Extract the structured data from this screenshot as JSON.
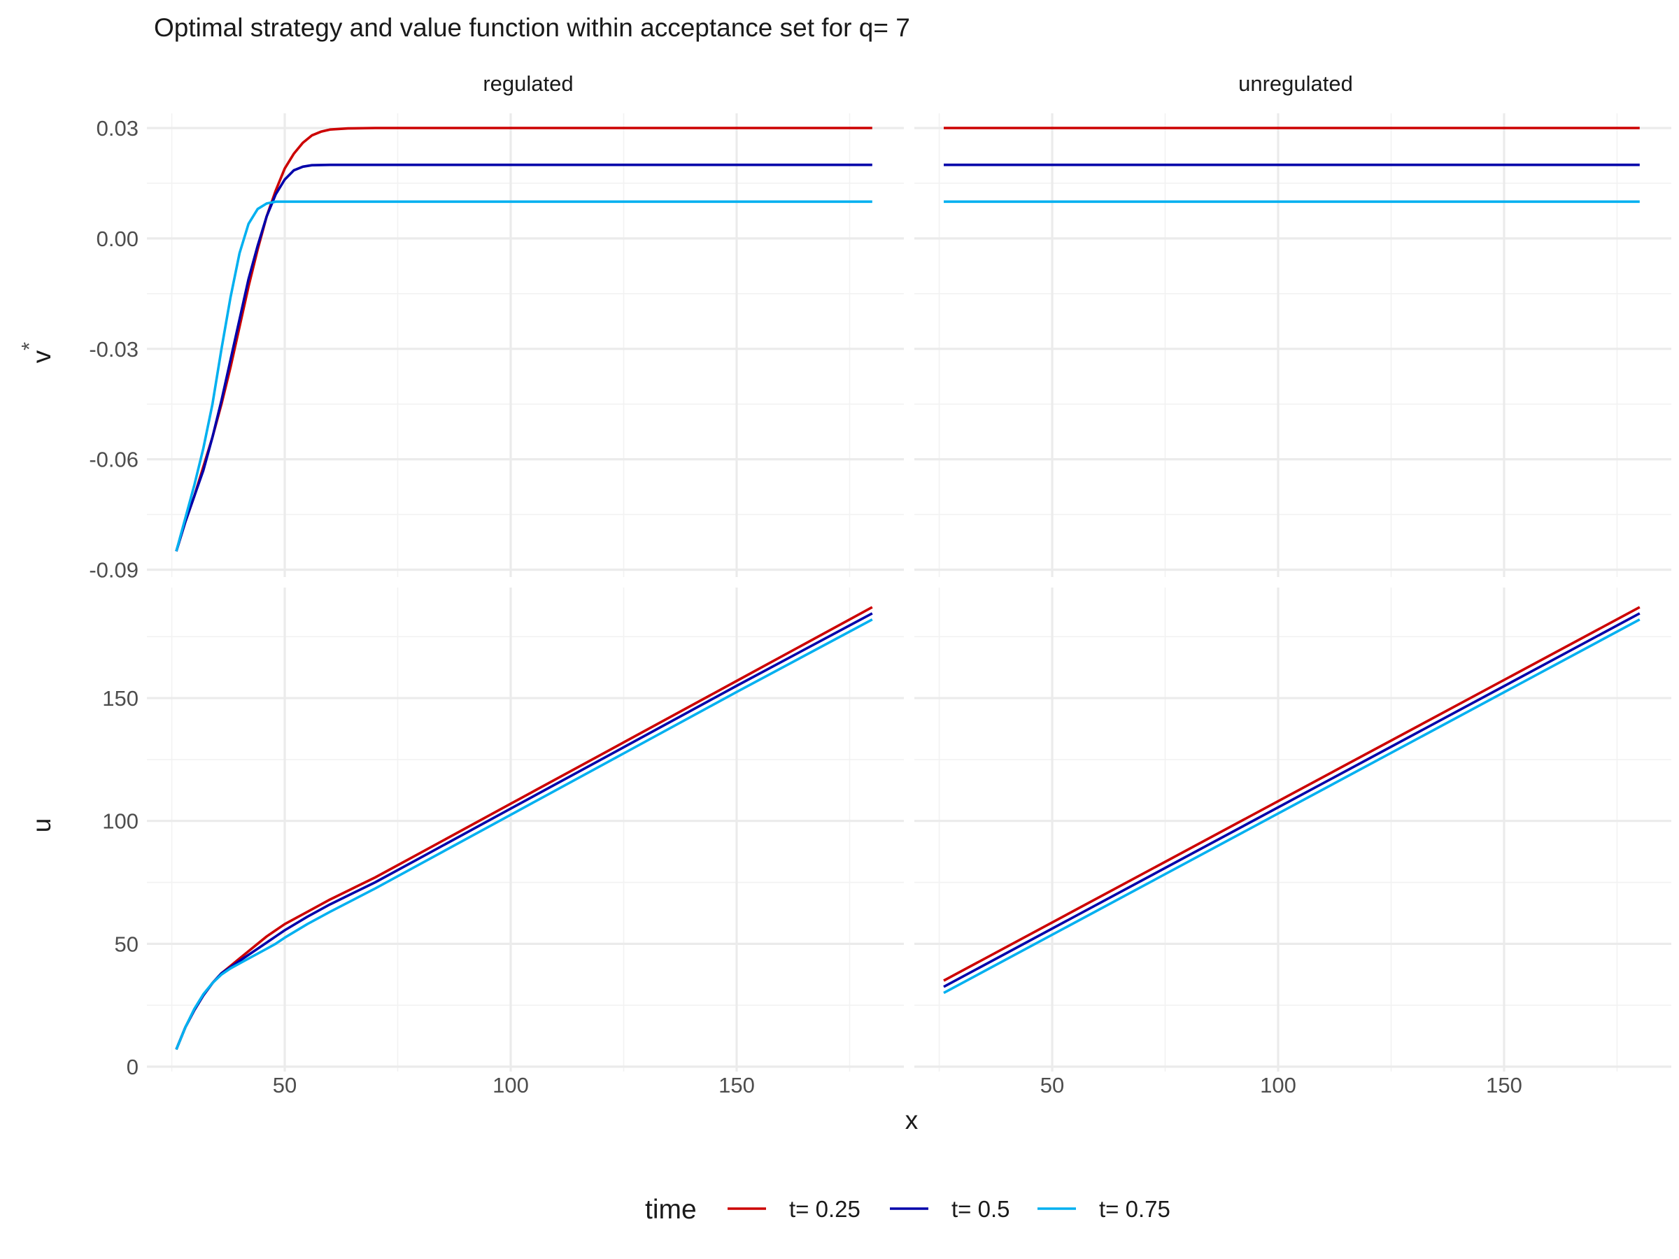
{
  "chart_data": {
    "type": "line",
    "title": "Optimal strategy and value function within acceptance set for q= 7",
    "xlabel": "x",
    "legend": {
      "title": "time",
      "position": "bottom",
      "entries": [
        {
          "name": "t= 0.25",
          "color": "#CC0000"
        },
        {
          "name": "t= 0.5",
          "color": "#0000AA"
        },
        {
          "name": "t= 0.75",
          "color": "#00B0F0"
        }
      ]
    },
    "grid": true,
    "columns": [
      "regulated",
      "unregulated"
    ],
    "rows": [
      {
        "ylabel": "v*",
        "ylim": [
          -0.092,
          0.034
        ],
        "yticks": [
          {
            "value": 0.03,
            "label": "0.03"
          },
          {
            "value": 0.0,
            "label": "0.00"
          },
          {
            "value": -0.03,
            "label": "-0.03"
          },
          {
            "value": -0.06,
            "label": "-0.06"
          },
          {
            "value": -0.09,
            "label": "-0.09"
          }
        ]
      },
      {
        "ylabel": "u",
        "ylim": [
          -2,
          195
        ],
        "yticks": [
          {
            "value": 0,
            "label": "0"
          },
          {
            "value": 50,
            "label": "50"
          },
          {
            "value": 100,
            "label": "100"
          },
          {
            "value": 150,
            "label": "150"
          }
        ]
      }
    ],
    "xlim": [
      19.5,
      187
    ],
    "xticks": [
      {
        "value": 50,
        "label": "50"
      },
      {
        "value": 100,
        "label": "100"
      },
      {
        "value": 150,
        "label": "150"
      }
    ],
    "panels": [
      {
        "row": 0,
        "col": "regulated",
        "series": [
          {
            "name": "t= 0.25",
            "points": [
              [
                26,
                -0.085
              ],
              [
                28,
                -0.077
              ],
              [
                30,
                -0.07
              ],
              [
                32,
                -0.062
              ],
              [
                34,
                -0.054
              ],
              [
                36,
                -0.045
              ],
              [
                38,
                -0.035
              ],
              [
                40,
                -0.024
              ],
              [
                42,
                -0.013
              ],
              [
                44,
                -0.003
              ],
              [
                46,
                0.006
              ],
              [
                48,
                0.013
              ],
              [
                50,
                0.019
              ],
              [
                52,
                0.023
              ],
              [
                54,
                0.026
              ],
              [
                56,
                0.028
              ],
              [
                58,
                0.029
              ],
              [
                60,
                0.0296
              ],
              [
                64,
                0.0299
              ],
              [
                70,
                0.03
              ],
              [
                100,
                0.03
              ],
              [
                150,
                0.03
              ],
              [
                180,
                0.03
              ]
            ]
          },
          {
            "name": "t= 0.5",
            "points": [
              [
                26,
                -0.085
              ],
              [
                28,
                -0.077
              ],
              [
                30,
                -0.07
              ],
              [
                32,
                -0.063
              ],
              [
                34,
                -0.054
              ],
              [
                36,
                -0.044
              ],
              [
                38,
                -0.033
              ],
              [
                40,
                -0.022
              ],
              [
                42,
                -0.011
              ],
              [
                44,
                -0.002
              ],
              [
                46,
                0.006
              ],
              [
                48,
                0.012
              ],
              [
                50,
                0.016
              ],
              [
                52,
                0.0185
              ],
              [
                54,
                0.0195
              ],
              [
                56,
                0.0199
              ],
              [
                60,
                0.02
              ],
              [
                70,
                0.02
              ],
              [
                100,
                0.02
              ],
              [
                150,
                0.02
              ],
              [
                180,
                0.02
              ]
            ]
          },
          {
            "name": "t= 0.75",
            "points": [
              [
                26,
                -0.085
              ],
              [
                28,
                -0.076
              ],
              [
                30,
                -0.067
              ],
              [
                32,
                -0.057
              ],
              [
                34,
                -0.045
              ],
              [
                36,
                -0.03
              ],
              [
                38,
                -0.016
              ],
              [
                40,
                -0.004
              ],
              [
                42,
                0.004
              ],
              [
                44,
                0.008
              ],
              [
                46,
                0.0095
              ],
              [
                48,
                0.01
              ],
              [
                50,
                0.01
              ],
              [
                60,
                0.01
              ],
              [
                100,
                0.01
              ],
              [
                150,
                0.01
              ],
              [
                180,
                0.01
              ]
            ]
          }
        ]
      },
      {
        "row": 0,
        "col": "unregulated",
        "series": [
          {
            "name": "t= 0.25",
            "points": [
              [
                26,
                0.03
              ],
              [
                180,
                0.03
              ]
            ]
          },
          {
            "name": "t= 0.5",
            "points": [
              [
                26,
                0.02
              ],
              [
                180,
                0.02
              ]
            ]
          },
          {
            "name": "t= 0.75",
            "points": [
              [
                26,
                0.01
              ],
              [
                180,
                0.01
              ]
            ]
          }
        ]
      },
      {
        "row": 1,
        "col": "regulated",
        "series": [
          {
            "name": "t= 0.25",
            "points": [
              [
                26,
                7
              ],
              [
                28,
                16
              ],
              [
                30,
                23
              ],
              [
                32,
                29
              ],
              [
                34,
                34
              ],
              [
                36,
                38
              ],
              [
                38,
                41
              ],
              [
                40,
                44
              ],
              [
                42,
                47
              ],
              [
                44,
                50
              ],
              [
                46,
                53
              ],
              [
                48,
                55.5
              ],
              [
                50,
                58
              ],
              [
                55,
                63
              ],
              [
                60,
                68
              ],
              [
                70,
                77
              ],
              [
                80,
                87
              ],
              [
                100,
                107
              ],
              [
                120,
                127
              ],
              [
                150,
                157
              ],
              [
                180,
                187
              ]
            ]
          },
          {
            "name": "t= 0.5",
            "points": [
              [
                26,
                7
              ],
              [
                28,
                16
              ],
              [
                30,
                23
              ],
              [
                32,
                29
              ],
              [
                34,
                34
              ],
              [
                36,
                38
              ],
              [
                38,
                40.5
              ],
              [
                40,
                43
              ],
              [
                42,
                45.5
              ],
              [
                44,
                48
              ],
              [
                46,
                50.5
              ],
              [
                48,
                53
              ],
              [
                50,
                55.5
              ],
              [
                55,
                61
              ],
              [
                60,
                66
              ],
              [
                70,
                75
              ],
              [
                80,
                85
              ],
              [
                100,
                105
              ],
              [
                120,
                125
              ],
              [
                150,
                155
              ],
              [
                180,
                184.5
              ]
            ]
          },
          {
            "name": "t= 0.75",
            "points": [
              [
                26,
                7
              ],
              [
                28,
                16
              ],
              [
                30,
                23.5
              ],
              [
                32,
                29.5
              ],
              [
                34,
                34
              ],
              [
                36,
                37.5
              ],
              [
                38,
                40
              ],
              [
                40,
                42
              ],
              [
                42,
                44
              ],
              [
                44,
                46
              ],
              [
                46,
                48
              ],
              [
                48,
                50
              ],
              [
                50,
                52.5
              ],
              [
                55,
                58
              ],
              [
                60,
                63
              ],
              [
                70,
                72.5
              ],
              [
                80,
                82.5
              ],
              [
                100,
                102.5
              ],
              [
                120,
                122.5
              ],
              [
                150,
                152.5
              ],
              [
                180,
                182
              ]
            ]
          }
        ]
      },
      {
        "row": 1,
        "col": "unregulated",
        "series": [
          {
            "name": "t= 0.25",
            "points": [
              [
                26,
                35
              ],
              [
                180,
                187
              ]
            ]
          },
          {
            "name": "t= 0.5",
            "points": [
              [
                26,
                32.5
              ],
              [
                180,
                184.5
              ]
            ]
          },
          {
            "name": "t= 0.75",
            "points": [
              [
                26,
                30
              ],
              [
                180,
                182
              ]
            ]
          }
        ]
      }
    ]
  }
}
